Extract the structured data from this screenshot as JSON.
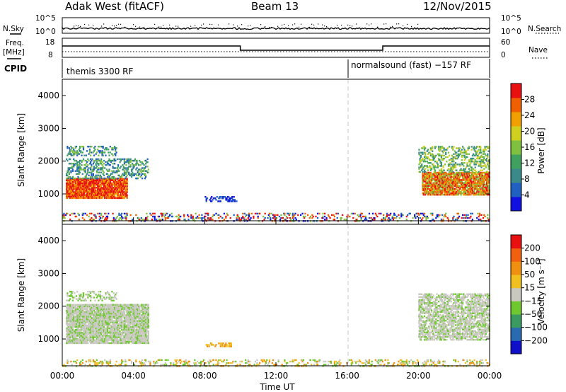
{
  "header": {
    "station": "Adak West (fitACF)",
    "beam": "Beam 13",
    "date": "12/Nov/2015"
  },
  "noise_panel": {
    "left_label": "N.Sky",
    "right_label": "N.Search",
    "left_ticks": [
      "10^5",
      "10^0"
    ],
    "right_ticks": [
      "10^5",
      "10^0"
    ]
  },
  "freq_panel": {
    "left_label_1": "Freq.",
    "left_label_2": "[MHz]",
    "right_label": "Nave",
    "left_ticks": [
      "18",
      "8"
    ],
    "right_ticks": [
      "60",
      "0"
    ],
    "freq_steps": [
      {
        "from": "00:00",
        "to": "10:00",
        "level": "high"
      },
      {
        "from": "10:00",
        "to": "18:00",
        "level": "low"
      },
      {
        "from": "18:00",
        "to": "24:00",
        "level": "high"
      }
    ]
  },
  "cpid_panel": {
    "label": "CPID",
    "mode_1": "themis 3300 RF",
    "mode_2": "normalsound (fast) −157 RF",
    "mode_2_start": "16:00"
  },
  "chart_data": [
    {
      "type": "heatmap",
      "name": "power",
      "ylabel": "Slant Range [km]",
      "yticks": [
        "4000",
        "3000",
        "2000",
        "1000"
      ],
      "ylim": [
        180,
        4500
      ],
      "xlim": [
        "00:00",
        "24:00"
      ],
      "colorbar": {
        "label": "Power [dB]",
        "ticks": [
          "28",
          "24",
          "20",
          "16",
          "12",
          "8",
          "4"
        ],
        "range": [
          0,
          32
        ],
        "colors": [
          "#1010e0",
          "#2060c0",
          "#3a8a8a",
          "#40a060",
          "#80c040",
          "#d0d020",
          "#f0a000",
          "#f06000",
          "#e81010"
        ]
      },
      "dashed_marker": "16:00"
    },
    {
      "type": "heatmap",
      "name": "velocity",
      "ylabel": "Slant Range [km]",
      "yticks": [
        "4000",
        "3000",
        "2000",
        "1000"
      ],
      "ylim": [
        180,
        4500
      ],
      "xlim": [
        "00:00",
        "24:00"
      ],
      "colorbar": {
        "label": "Velocity [m s⁻¹]",
        "ticks": [
          "200",
          "100",
          "50",
          "15",
          "−15",
          "−50",
          "−100",
          "−200"
        ],
        "colors": [
          "#1010c8",
          "#2a6ab0",
          "#3a9a60",
          "#70c830",
          "#c8c8c0",
          "#f0c020",
          "#f09010",
          "#f06010",
          "#e81010"
        ]
      },
      "dashed_marker": "16:00"
    }
  ],
  "time_axis": {
    "ticks": [
      "00:00",
      "04:00",
      "08:00",
      "12:00",
      "16:00",
      "20:00",
      "00:00"
    ],
    "label": "Time UT"
  }
}
